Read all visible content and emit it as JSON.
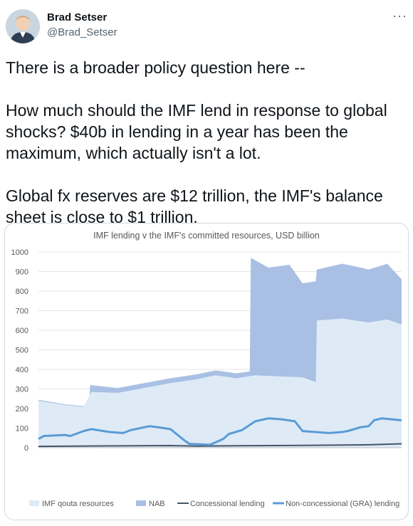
{
  "author": {
    "name": "Brad Setser",
    "handle": "@Brad_Setser",
    "avatar_icon": "person-avatar-icon"
  },
  "menu": {
    "label": "···",
    "icon": "more-options-icon"
  },
  "tweet": {
    "paragraphs": [
      "There is a broader policy question here --",
      "How much should the IMF lend in response to global shocks? $40b in lending in a year has been the maximum, which actually isn't a lot.",
      "Global fx reserves are $12 trillion, the IMF's balance sheet is close to $1 trillion."
    ]
  },
  "chart_data": {
    "type": "area",
    "title": "IMF lending v the IMF's committed resources, USD billion",
    "ylim": [
      0,
      1000
    ],
    "yticks": [
      0,
      100,
      200,
      300,
      400,
      500,
      600,
      700,
      800,
      900,
      1000
    ],
    "xlim": [
      "1995-01",
      "2022-07"
    ],
    "xticks": [
      "Jan-1995",
      "Dec-1995",
      "Nov-1996",
      "Oct-1997",
      "Sep-1998",
      "Aug-1999",
      "Jul-2000",
      "Jun-2001",
      "May-2002",
      "Apr-2003",
      "Mar-2004",
      "Feb-2005",
      "Jan-2006",
      "Dec-2006",
      "Nov-2007",
      "Oct-2008",
      "Sep-2009",
      "Aug-2010",
      "Jul-2011",
      "Jun-2012",
      "May-2013",
      "Apr-2014",
      "Mar-2015",
      "Feb-2016",
      "Jan-2017",
      "Dec-2017",
      "Nov-2018",
      "Oct-2019",
      "Sep-2020",
      "Aug-2021",
      "Jul-2022"
    ],
    "grid": true,
    "legend_position": "bottom",
    "series": [
      {
        "name": "IMF qouta resources",
        "kind": "area",
        "color": "#deebf7",
        "points": [
          [
            "1995-01",
            240
          ],
          [
            "1997-01",
            218
          ],
          [
            "1998-06",
            208
          ],
          [
            "1999-01",
            285
          ],
          [
            "2001-01",
            280
          ],
          [
            "2003-01",
            305
          ],
          [
            "2005-01",
            330
          ],
          [
            "2007-01",
            350
          ],
          [
            "2008-06",
            370
          ],
          [
            "2010-01",
            355
          ],
          [
            "2011-06",
            370
          ],
          [
            "2013-01",
            365
          ],
          [
            "2015-01",
            360
          ],
          [
            "2016-01",
            335
          ],
          [
            "2016-02",
            650
          ],
          [
            "2018-01",
            660
          ],
          [
            "2020-01",
            640
          ],
          [
            "2021-06",
            655
          ],
          [
            "2022-07",
            630
          ]
        ]
      },
      {
        "name": "NAB",
        "kind": "area",
        "color": "#a9c0e4",
        "points": [
          [
            "1995-01",
            245
          ],
          [
            "1997-01",
            222
          ],
          [
            "1998-06",
            212
          ],
          [
            "1998-11",
            240
          ],
          [
            "1998-12",
            320
          ],
          [
            "2001-01",
            305
          ],
          [
            "2003-01",
            330
          ],
          [
            "2005-01",
            355
          ],
          [
            "2007-01",
            375
          ],
          [
            "2008-06",
            395
          ],
          [
            "2010-01",
            380
          ],
          [
            "2011-01",
            390
          ],
          [
            "2011-02",
            970
          ],
          [
            "2012-06",
            920
          ],
          [
            "2014-01",
            935
          ],
          [
            "2015-01",
            840
          ],
          [
            "2016-01",
            850
          ],
          [
            "2016-02",
            910
          ],
          [
            "2018-01",
            940
          ],
          [
            "2019-06",
            920
          ],
          [
            "2020-01",
            910
          ],
          [
            "2021-06",
            940
          ],
          [
            "2022-07",
            860
          ]
        ]
      },
      {
        "name": "Concessional lending",
        "kind": "line",
        "color": "#44546a",
        "points": [
          [
            "1995-01",
            7
          ],
          [
            "2000-01",
            9
          ],
          [
            "2005-01",
            11
          ],
          [
            "2007-01",
            8
          ],
          [
            "2010-01",
            10
          ],
          [
            "2015-01",
            12
          ],
          [
            "2020-01",
            15
          ],
          [
            "2022-07",
            20
          ]
        ]
      },
      {
        "name": "Non-concessional (GRA) lending",
        "kind": "line",
        "color": "#5b9bd5",
        "points": [
          [
            "1995-01",
            45
          ],
          [
            "1995-06",
            60
          ],
          [
            "1997-01",
            65
          ],
          [
            "1997-06",
            60
          ],
          [
            "1998-06",
            85
          ],
          [
            "1999-01",
            95
          ],
          [
            "2000-06",
            80
          ],
          [
            "2001-06",
            75
          ],
          [
            "2002-01",
            90
          ],
          [
            "2003-06",
            110
          ],
          [
            "2004-01",
            105
          ],
          [
            "2005-01",
            95
          ],
          [
            "2006-01",
            40
          ],
          [
            "2006-06",
            20
          ],
          [
            "2008-01",
            15
          ],
          [
            "2009-01",
            45
          ],
          [
            "2009-06",
            70
          ],
          [
            "2010-06",
            90
          ],
          [
            "2011-06",
            135
          ],
          [
            "2012-06",
            150
          ],
          [
            "2013-06",
            145
          ],
          [
            "2014-06",
            135
          ],
          [
            "2015-01",
            85
          ],
          [
            "2016-01",
            80
          ],
          [
            "2017-01",
            75
          ],
          [
            "2018-01",
            80
          ],
          [
            "2018-06",
            85
          ],
          [
            "2019-06",
            105
          ],
          [
            "2020-01",
            110
          ],
          [
            "2020-06",
            140
          ],
          [
            "2021-01",
            150
          ],
          [
            "2022-07",
            140
          ]
        ]
      }
    ]
  }
}
